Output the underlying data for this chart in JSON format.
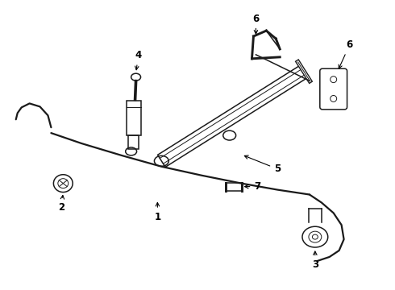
{
  "background_color": "#ffffff",
  "line_color": "#1a1a1a",
  "figsize": [
    4.9,
    3.6
  ],
  "dpi": 100,
  "label_fontsize": 8.5,
  "lw": 1.1,
  "tlw": 0.7
}
